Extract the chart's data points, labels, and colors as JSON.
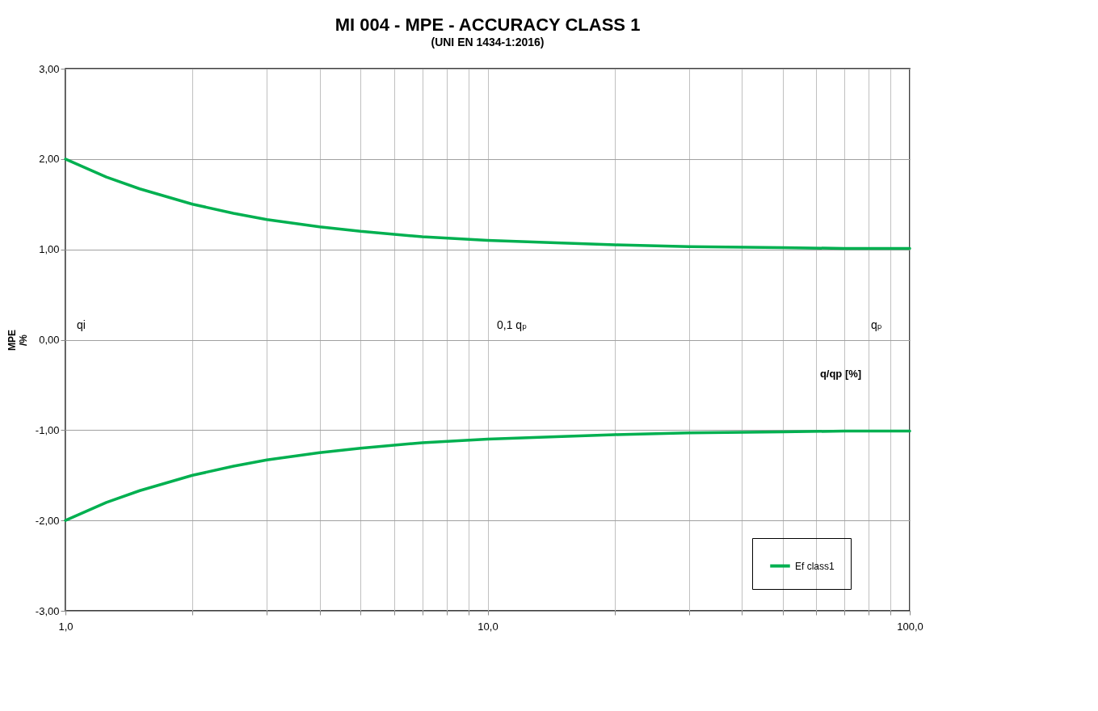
{
  "chart_data": {
    "type": "line",
    "title": "MI 004  -  MPE - ACCURACY CLASS 1",
    "subtitle": "(UNI EN 1434-1:2016)",
    "xlabel": "q/qp   [%]",
    "ylabel": "MPE /%",
    "x": [
      1,
      1.25,
      1.5,
      2,
      2.5,
      3,
      4,
      5,
      7,
      10,
      15,
      20,
      30,
      50,
      70,
      100
    ],
    "series": [
      {
        "name": "Ef class1",
        "color": "#00b050",
        "values": [
          2,
          1.8,
          1.67,
          1.5,
          1.4,
          1.33,
          1.25,
          1.2,
          1.14,
          1.1,
          1.07,
          1.05,
          1.03,
          1.02,
          1.01,
          1.01
        ]
      },
      {
        "color": "#00b050",
        "values": [
          -2,
          -1.8,
          -1.67,
          -1.5,
          -1.4,
          -1.33,
          -1.25,
          -1.2,
          -1.14,
          -1.1,
          -1.07,
          -1.05,
          -1.03,
          -1.02,
          -1.01,
          -1.01
        ]
      }
    ],
    "log": "x",
    "xlim": [
      1,
      100
    ],
    "xticks": [
      {
        "value": 1,
        "label": "1,0"
      },
      {
        "value": 2,
        "label": null
      },
      {
        "value": 3,
        "label": null
      },
      {
        "value": 4,
        "label": null
      },
      {
        "value": 5,
        "label": null
      },
      {
        "value": 6,
        "label": null
      },
      {
        "value": 7,
        "label": null
      },
      {
        "value": 8,
        "label": null
      },
      {
        "value": 9,
        "label": null
      },
      {
        "value": 10,
        "label": "10,0"
      },
      {
        "value": 20,
        "label": null
      },
      {
        "value": 30,
        "label": null
      },
      {
        "value": 40,
        "label": null
      },
      {
        "value": 50,
        "label": null
      },
      {
        "value": 60,
        "label": null
      },
      {
        "value": 70,
        "label": null
      },
      {
        "value": 80,
        "label": null
      },
      {
        "value": 90,
        "label": null
      },
      {
        "value": 100,
        "label": "100,0"
      }
    ],
    "ylim": [
      -3,
      3
    ],
    "yticks": [
      {
        "value": -3,
        "label": "-3,00"
      },
      {
        "value": -2,
        "label": "-2,00"
      },
      {
        "value": -1,
        "label": "-1,00"
      },
      {
        "value": 0,
        "label": "0,00"
      },
      {
        "value": 1,
        "label": "1,00"
      },
      {
        "value": 2,
        "label": "2,00"
      },
      {
        "value": 3,
        "label": "3,00"
      }
    ],
    "annotations": [
      "qi",
      "0,1 qₚ",
      "qₚ"
    ],
    "grid": true,
    "legend": "bottom right",
    "line_style": "solid",
    "marker": "none"
  }
}
